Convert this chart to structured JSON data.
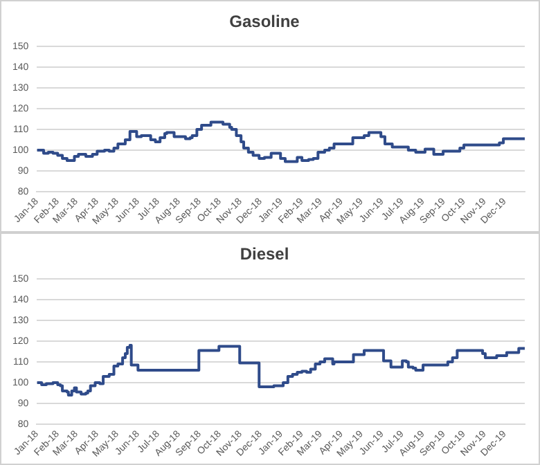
{
  "chart_data": [
    {
      "type": "step",
      "title": "Gasoline",
      "color": "#2f4b8a",
      "grid": "y",
      "ylim": [
        80,
        150
      ],
      "yticks": [
        80,
        90,
        100,
        110,
        120,
        130,
        140,
        150
      ],
      "xlim": [
        "2018-01-01",
        "2019-12-31"
      ],
      "xticks": [
        {
          "value": "2018-01",
          "label": "Jan-18"
        },
        {
          "value": "2018-02",
          "label": "Feb-18"
        },
        {
          "value": "2018-03",
          "label": "Mar-18"
        },
        {
          "value": "2018-04",
          "label": "Apr-18"
        },
        {
          "value": "2018-05",
          "label": "May-18"
        },
        {
          "value": "2018-06",
          "label": "Jun-18"
        },
        {
          "value": "2018-07",
          "label": "Jul-18"
        },
        {
          "value": "2018-08",
          "label": "Aug-18"
        },
        {
          "value": "2018-09",
          "label": "Sep-18"
        },
        {
          "value": "2018-10",
          "label": "Oct-18"
        },
        {
          "value": "2018-11",
          "label": "Nov-18"
        },
        {
          "value": "2018-12",
          "label": "Dec-18"
        },
        {
          "value": "2019-01",
          "label": "Jan-19"
        },
        {
          "value": "2019-02",
          "label": "Feb-19"
        },
        {
          "value": "2019-03",
          "label": "Mar-19"
        },
        {
          "value": "2019-04",
          "label": "Apr-19"
        },
        {
          "value": "2019-05",
          "label": "May-19"
        },
        {
          "value": "2019-06",
          "label": "Jun-19"
        },
        {
          "value": "2019-07",
          "label": "Jul-19"
        },
        {
          "value": "2019-08",
          "label": "Aug-19"
        },
        {
          "value": "2019-09",
          "label": "Sep-19"
        },
        {
          "value": "2019-10",
          "label": "Oct-19"
        },
        {
          "value": "2019-11",
          "label": "Nov-19"
        },
        {
          "value": "2019-12",
          "label": "Dec-19"
        }
      ],
      "x": [
        "2018-01-01",
        "2018-01-11",
        "2018-01-18",
        "2018-01-25",
        "2018-02-01",
        "2018-02-08",
        "2018-02-15",
        "2018-02-26",
        "2018-03-04",
        "2018-03-15",
        "2018-03-25",
        "2018-04-01",
        "2018-04-12",
        "2018-04-19",
        "2018-04-26",
        "2018-05-02",
        "2018-05-13",
        "2018-05-20",
        "2018-05-30",
        "2018-06-06",
        "2018-06-20",
        "2018-06-27",
        "2018-07-04",
        "2018-07-11",
        "2018-07-14",
        "2018-07-25",
        "2018-08-11",
        "2018-08-18",
        "2018-08-21",
        "2018-08-28",
        "2018-09-04",
        "2018-09-18",
        "2018-10-06",
        "2018-10-16",
        "2018-10-19",
        "2018-10-26",
        "2018-11-02",
        "2018-11-06",
        "2018-11-13",
        "2018-11-20",
        "2018-11-29",
        "2018-12-07",
        "2018-12-17",
        "2018-12-31",
        "2019-01-07",
        "2019-01-25",
        "2019-02-01",
        "2019-02-11",
        "2019-02-18",
        "2019-02-25",
        "2019-03-07",
        "2019-03-14",
        "2019-03-21",
        "2019-04-18",
        "2019-05-05",
        "2019-05-12",
        "2019-05-30",
        "2019-06-05",
        "2019-06-16",
        "2019-07-10",
        "2019-07-21",
        "2019-08-04",
        "2019-08-17",
        "2019-08-31",
        "2019-09-25",
        "2019-10-01",
        "2019-11-23",
        "2019-11-29",
        "2019-12-31"
      ],
      "values": [
        100,
        98.5,
        99,
        98.5,
        97.5,
        96,
        95,
        97,
        98,
        97,
        98,
        99.5,
        100,
        99.5,
        101,
        103,
        105,
        109,
        106.5,
        107,
        105,
        104,
        106,
        108,
        108.5,
        106.5,
        105.5,
        106,
        107,
        110,
        112,
        113.5,
        112.5,
        111,
        110,
        107,
        104,
        101,
        99,
        97.5,
        96,
        96.5,
        98.5,
        96,
        94.5,
        96.5,
        95,
        95.5,
        96,
        99,
        100,
        101,
        103,
        106,
        107,
        108.5,
        106.5,
        103,
        101.5,
        100,
        99,
        100.5,
        98,
        99.5,
        101,
        102.5,
        103.5,
        105.5,
        105.5
      ]
    },
    {
      "type": "step",
      "title": "Diesel",
      "color": "#2f4b8a",
      "grid": "y",
      "ylim": [
        80,
        150
      ],
      "yticks": [
        80,
        90,
        100,
        110,
        120,
        130,
        140,
        150
      ],
      "xlim": [
        "2018-01-01",
        "2019-12-31"
      ],
      "xticks": [
        {
          "value": "2018-01",
          "label": "Jan-18"
        },
        {
          "value": "2018-02",
          "label": "Feb-18"
        },
        {
          "value": "2018-03",
          "label": "Mar-18"
        },
        {
          "value": "2018-04",
          "label": "Apr-18"
        },
        {
          "value": "2018-05",
          "label": "May-18"
        },
        {
          "value": "2018-06",
          "label": "Jun-18"
        },
        {
          "value": "2018-07",
          "label": "Jul-18"
        },
        {
          "value": "2018-08",
          "label": "Aug-18"
        },
        {
          "value": "2018-09",
          "label": "Sep-18"
        },
        {
          "value": "2018-10",
          "label": "Oct-18"
        },
        {
          "value": "2018-11",
          "label": "Nov-18"
        },
        {
          "value": "2018-12",
          "label": "Dec-18"
        },
        {
          "value": "2019-01",
          "label": "Jan-19"
        },
        {
          "value": "2019-02",
          "label": "Feb-19"
        },
        {
          "value": "2019-03",
          "label": "Mar-19"
        },
        {
          "value": "2019-04",
          "label": "Apr-19"
        },
        {
          "value": "2019-05",
          "label": "May-19"
        },
        {
          "value": "2019-06",
          "label": "Jun-19"
        },
        {
          "value": "2019-07",
          "label": "Jul-19"
        },
        {
          "value": "2019-08",
          "label": "Aug-19"
        },
        {
          "value": "2019-09",
          "label": "Sep-19"
        },
        {
          "value": "2019-10",
          "label": "Oct-19"
        },
        {
          "value": "2019-11",
          "label": "Nov-19"
        },
        {
          "value": "2019-12",
          "label": "Dec-19"
        }
      ],
      "x": [
        "2018-01-01",
        "2018-01-08",
        "2018-01-15",
        "2018-01-25",
        "2018-02-01",
        "2018-02-05",
        "2018-02-08",
        "2018-02-15",
        "2018-02-17",
        "2018-02-22",
        "2018-02-26",
        "2018-03-01",
        "2018-03-08",
        "2018-03-15",
        "2018-03-18",
        "2018-03-22",
        "2018-03-29",
        "2018-04-05",
        "2018-04-10",
        "2018-04-19",
        "2018-04-26",
        "2018-05-02",
        "2018-05-09",
        "2018-05-13",
        "2018-05-16",
        "2018-05-20",
        "2018-05-22",
        "2018-06-01",
        "2018-08-31",
        "2018-09-30",
        "2018-10-31",
        "2018-11-29",
        "2018-12-21",
        "2019-01-04",
        "2019-01-11",
        "2019-01-18",
        "2019-01-25",
        "2019-02-01",
        "2019-02-08",
        "2019-02-14",
        "2019-02-21",
        "2019-02-28",
        "2019-03-07",
        "2019-03-19",
        "2019-03-21",
        "2019-04-19",
        "2019-05-05",
        "2019-06-03",
        "2019-06-14",
        "2019-07-01",
        "2019-07-07",
        "2019-07-10",
        "2019-07-17",
        "2019-07-21",
        "2019-08-01",
        "2019-09-07",
        "2019-09-14",
        "2019-09-21",
        "2019-10-29",
        "2019-11-02",
        "2019-11-19",
        "2019-12-04",
        "2019-12-22",
        "2019-12-31"
      ],
      "values": [
        100,
        99,
        99.5,
        100,
        99,
        98.5,
        96,
        95.5,
        94,
        96,
        97.5,
        95.5,
        94.5,
        95,
        96,
        98.5,
        100,
        99.5,
        103,
        104,
        108,
        109,
        112,
        114,
        117,
        118,
        108.5,
        106,
        115.5,
        117.5,
        109.5,
        98,
        98.5,
        100,
        103,
        104,
        105,
        105.5,
        105,
        106.5,
        109,
        110,
        111.5,
        109,
        110,
        113.5,
        115.5,
        110.5,
        107.5,
        110.5,
        110,
        107.5,
        107,
        106,
        108.5,
        110,
        112,
        115.5,
        114,
        112,
        113,
        114.5,
        116.5,
        116.5
      ]
    }
  ]
}
